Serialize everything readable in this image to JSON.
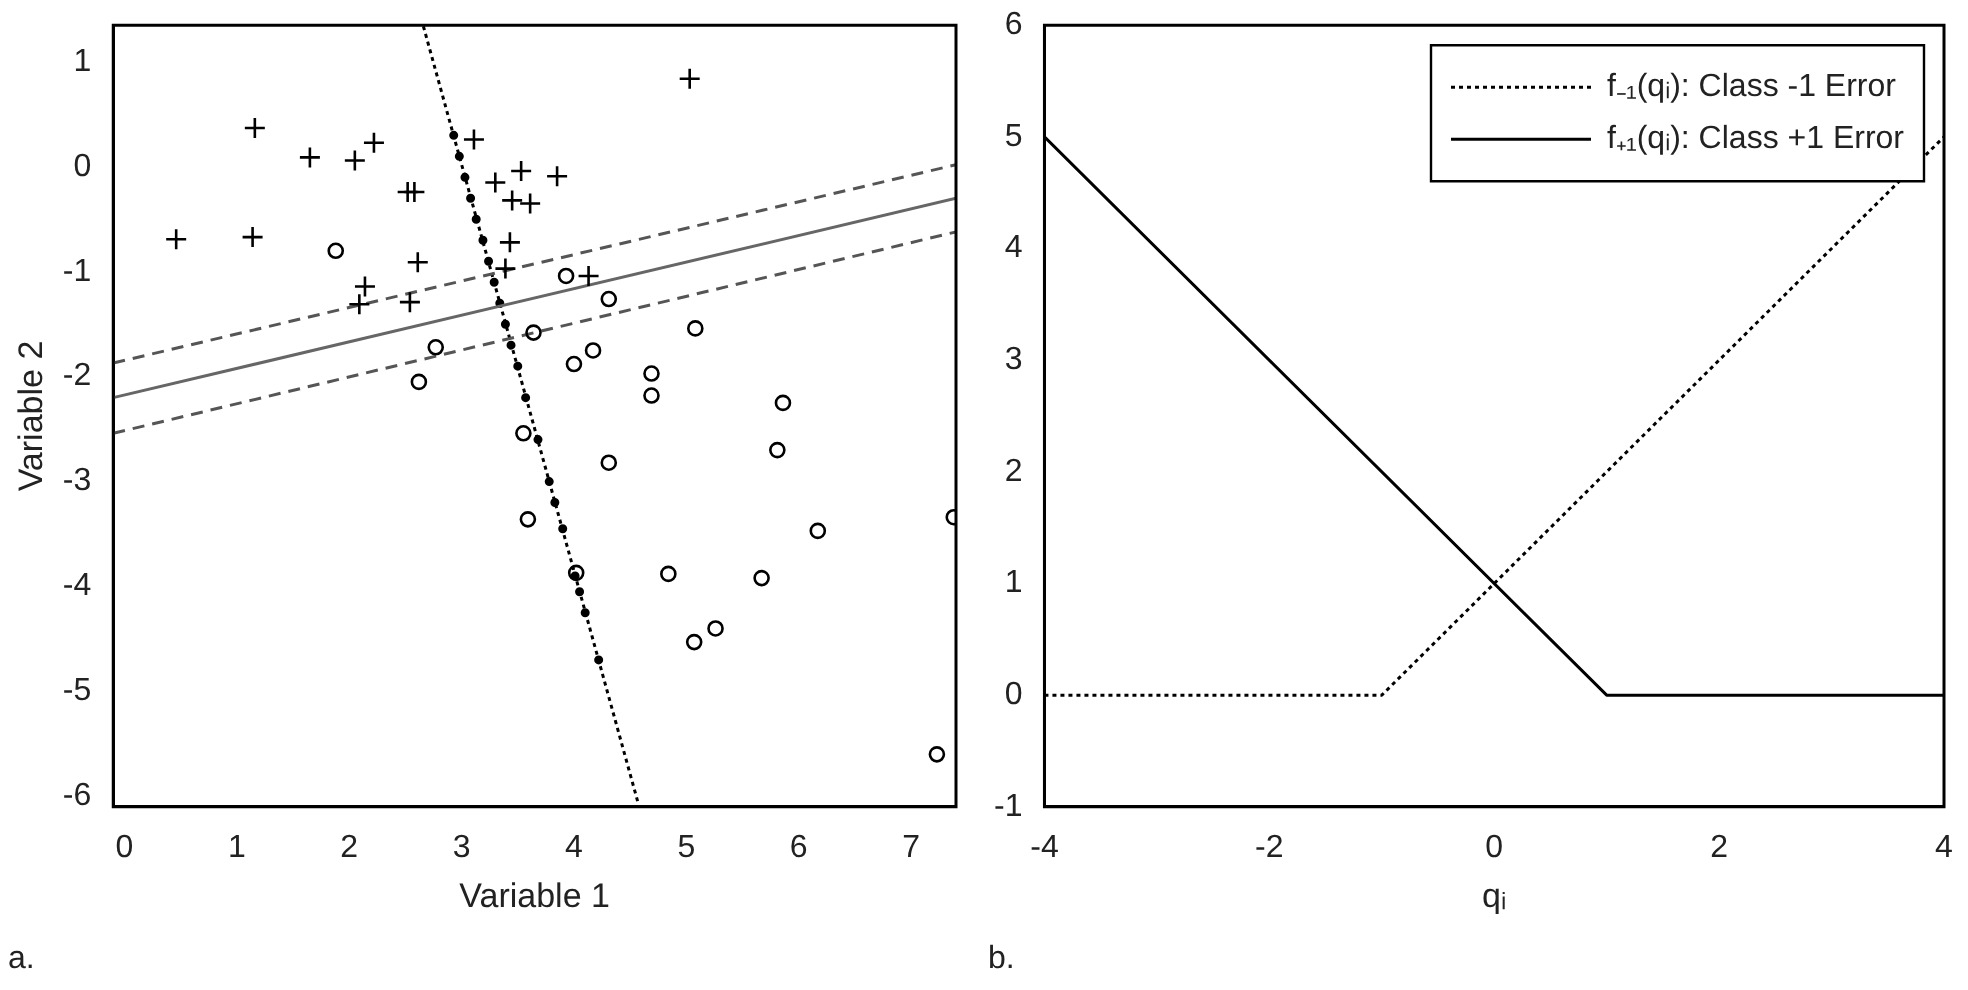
{
  "chart_data": [
    {
      "type": "scatter",
      "xlabel": "Variable 1",
      "ylabel": "Variable 2",
      "xlim": [
        -0.1,
        7.4
      ],
      "ylim": [
        -6.1,
        1.35
      ],
      "xticks": [
        0,
        1,
        2,
        3,
        4,
        5,
        6,
        7
      ],
      "yticks": [
        -6,
        -5,
        -4,
        -3,
        -2,
        -1,
        0,
        1
      ],
      "grid": false,
      "legend": false,
      "annotations": [
        "a."
      ],
      "series": [
        {
          "type": "scatter",
          "marker": "cross",
          "color": "#000000",
          "x": [
            0.46,
            1.16,
            1.14,
            1.65,
            2.05,
            2.22,
            2.52,
            2.58,
            2.61,
            2.14,
            2.09,
            2.54,
            3.11,
            3.3,
            3.53,
            3.45,
            3.61,
            3.43,
            3.39,
            5.03,
            3.85,
            4.13
          ],
          "values": [
            -0.69,
            0.37,
            -0.67,
            0.09,
            0.06,
            0.23,
            -0.24,
            -0.24,
            -0.91,
            -1.14,
            -1.31,
            -1.29,
            0.26,
            -0.15,
            -0.04,
            -0.32,
            -0.35,
            -0.72,
            -0.97,
            0.84,
            -0.09,
            -1.04
          ]
        },
        {
          "type": "scatter",
          "marker": "circle",
          "color": "#000000",
          "x": [
            1.88,
            2.77,
            2.62,
            3.64,
            3.55,
            3.93,
            4.31,
            5.08,
            4.17,
            4.0,
            4.69,
            4.69,
            5.86,
            5.81,
            4.31,
            3.59,
            6.17,
            7.38,
            4.84,
            5.67,
            5.07,
            5.26,
            7.23,
            4.02
          ],
          "values": [
            -0.8,
            -1.72,
            -2.05,
            -1.58,
            -2.54,
            -1.04,
            -1.26,
            -1.54,
            -1.75,
            -1.88,
            -1.97,
            -2.18,
            -2.25,
            -2.7,
            -2.82,
            -3.36,
            -3.47,
            -3.34,
            -3.88,
            -3.92,
            -4.53,
            -4.4,
            -5.6,
            -3.87
          ]
        },
        {
          "type": "line",
          "marker": "none",
          "line_style": "solid",
          "color": "#666666",
          "x": [
            -0.1,
            7.4
          ],
          "values": [
            -2.2,
            -0.3
          ]
        },
        {
          "type": "line",
          "marker": "none",
          "line_style": "dashed",
          "color": "#555555",
          "x": [
            -0.1,
            7.4
          ],
          "values": [
            -1.87,
            0.02
          ]
        },
        {
          "type": "line",
          "marker": "none",
          "line_style": "dashed",
          "color": "#555555",
          "x": [
            -0.1,
            7.4
          ],
          "values": [
            -2.54,
            -0.62
          ]
        },
        {
          "type": "line",
          "marker": "none",
          "line_style": "dotted",
          "color": "#000000",
          "x": [
            2.66,
            4.57
          ],
          "values": [
            1.34,
            -6.06
          ]
        },
        {
          "type": "scatter",
          "marker": "circle",
          "color": "#000000",
          "x": [
            2.93,
            2.98,
            3.03,
            3.08,
            3.13,
            3.19,
            3.24,
            3.29,
            3.34,
            3.39,
            3.44,
            3.5,
            3.57,
            3.68,
            3.78,
            3.83,
            3.9,
            4.01,
            4.05,
            4.1,
            4.22
          ],
          "values": [
            0.3,
            0.1,
            -0.1,
            -0.3,
            -0.5,
            -0.7,
            -0.9,
            -1.1,
            -1.3,
            -1.5,
            -1.7,
            -1.9,
            -2.2,
            -2.6,
            -3.0,
            -3.2,
            -3.45,
            -3.9,
            -4.05,
            -4.25,
            -4.7
          ]
        }
      ]
    },
    {
      "type": "line",
      "xlabel": "qᵢ",
      "xlim": [
        -4,
        4
      ],
      "ylim": [
        -1,
        6
      ],
      "xticks": [
        -4,
        -2,
        0,
        2,
        4
      ],
      "yticks": [
        -1,
        0,
        1,
        2,
        3,
        4,
        5,
        6
      ],
      "grid": false,
      "legend": "top right",
      "marker": "none",
      "annotations": [
        "b."
      ],
      "series": [
        {
          "name": "f₋₁(qᵢ): Class -1 Error",
          "line_style": "dotted",
          "color": "#000000",
          "x": [
            -4,
            -1,
            4
          ],
          "values": [
            0,
            0,
            5
          ]
        },
        {
          "name": "f₊₁(qᵢ): Class +1 Error",
          "line_style": "solid",
          "color": "#000000",
          "x": [
            -4,
            1,
            4
          ],
          "values": [
            5,
            0,
            0
          ]
        }
      ]
    }
  ]
}
